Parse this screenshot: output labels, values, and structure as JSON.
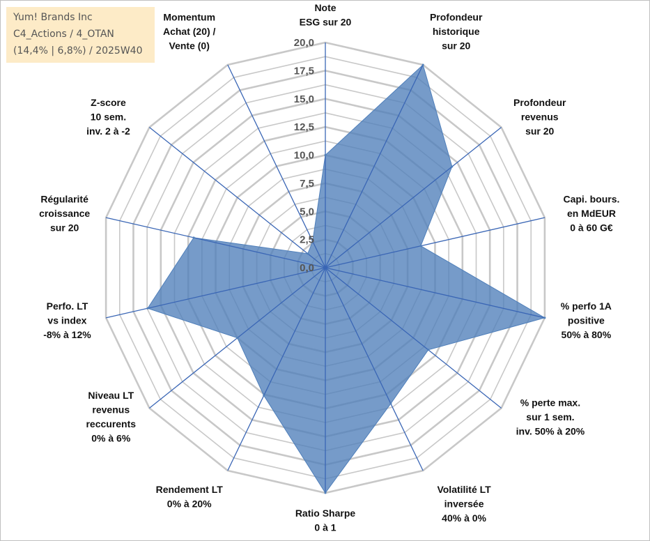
{
  "header": {
    "line1": "Yum! Brands Inc",
    "line2": "C4_Actions / 4_OTAN",
    "line3": "(14,4% | 6,8%) / 2025W40"
  },
  "colors": {
    "fill": "#4f7fba",
    "axis": "#3a66b5",
    "grid": "#c8c8c8"
  },
  "chart_data": {
    "type": "radar",
    "title": "Yum! Brands Inc",
    "rmin": 0,
    "rmax": 20,
    "tick_labels": [
      "0,0",
      "2,5",
      "5,0",
      "7,5",
      "10,0",
      "12,5",
      "15,0",
      "17,5",
      "20,0"
    ],
    "categories": [
      [
        "Note",
        "ESG sur 20"
      ],
      [
        "Profondeur",
        "historique",
        "sur 20"
      ],
      [
        "Profondeur",
        "revenus",
        "sur 20"
      ],
      [
        "Capi. bours.",
        "en MdEUR",
        "0 à 60 G€"
      ],
      [
        "% perfo 1A",
        "positive",
        "50% à 80%"
      ],
      [
        "% perte max.",
        "sur 1 sem.",
        "inv. 50% à 20%"
      ],
      [
        "Volatilité LT",
        "inversée",
        "40% à 0%"
      ],
      [
        "Ratio Sharpe",
        "0 à 1"
      ],
      [
        "Rendement LT",
        "0% à 20%"
      ],
      [
        "Niveau LT",
        "revenus",
        "reccurents",
        "0% à 6%"
      ],
      [
        "Perfo. LT",
        "vs index",
        "-8% à 12%"
      ],
      [
        "Régularité",
        "croissance",
        "sur 20"
      ],
      [
        "Z-score",
        "10 sem.",
        "inv. 2 à -2"
      ],
      [
        "Momentum",
        "Achat (20) /",
        "Vente (0)"
      ]
    ],
    "series": [
      {
        "name": "Yum! Brands Inc",
        "values": [
          10.0,
          20.0,
          14.4,
          8.7,
          20.0,
          11.7,
          13.4,
          20.0,
          12.6,
          10.0,
          16.2,
          12.0,
          2.0,
          2.6
        ]
      }
    ]
  }
}
